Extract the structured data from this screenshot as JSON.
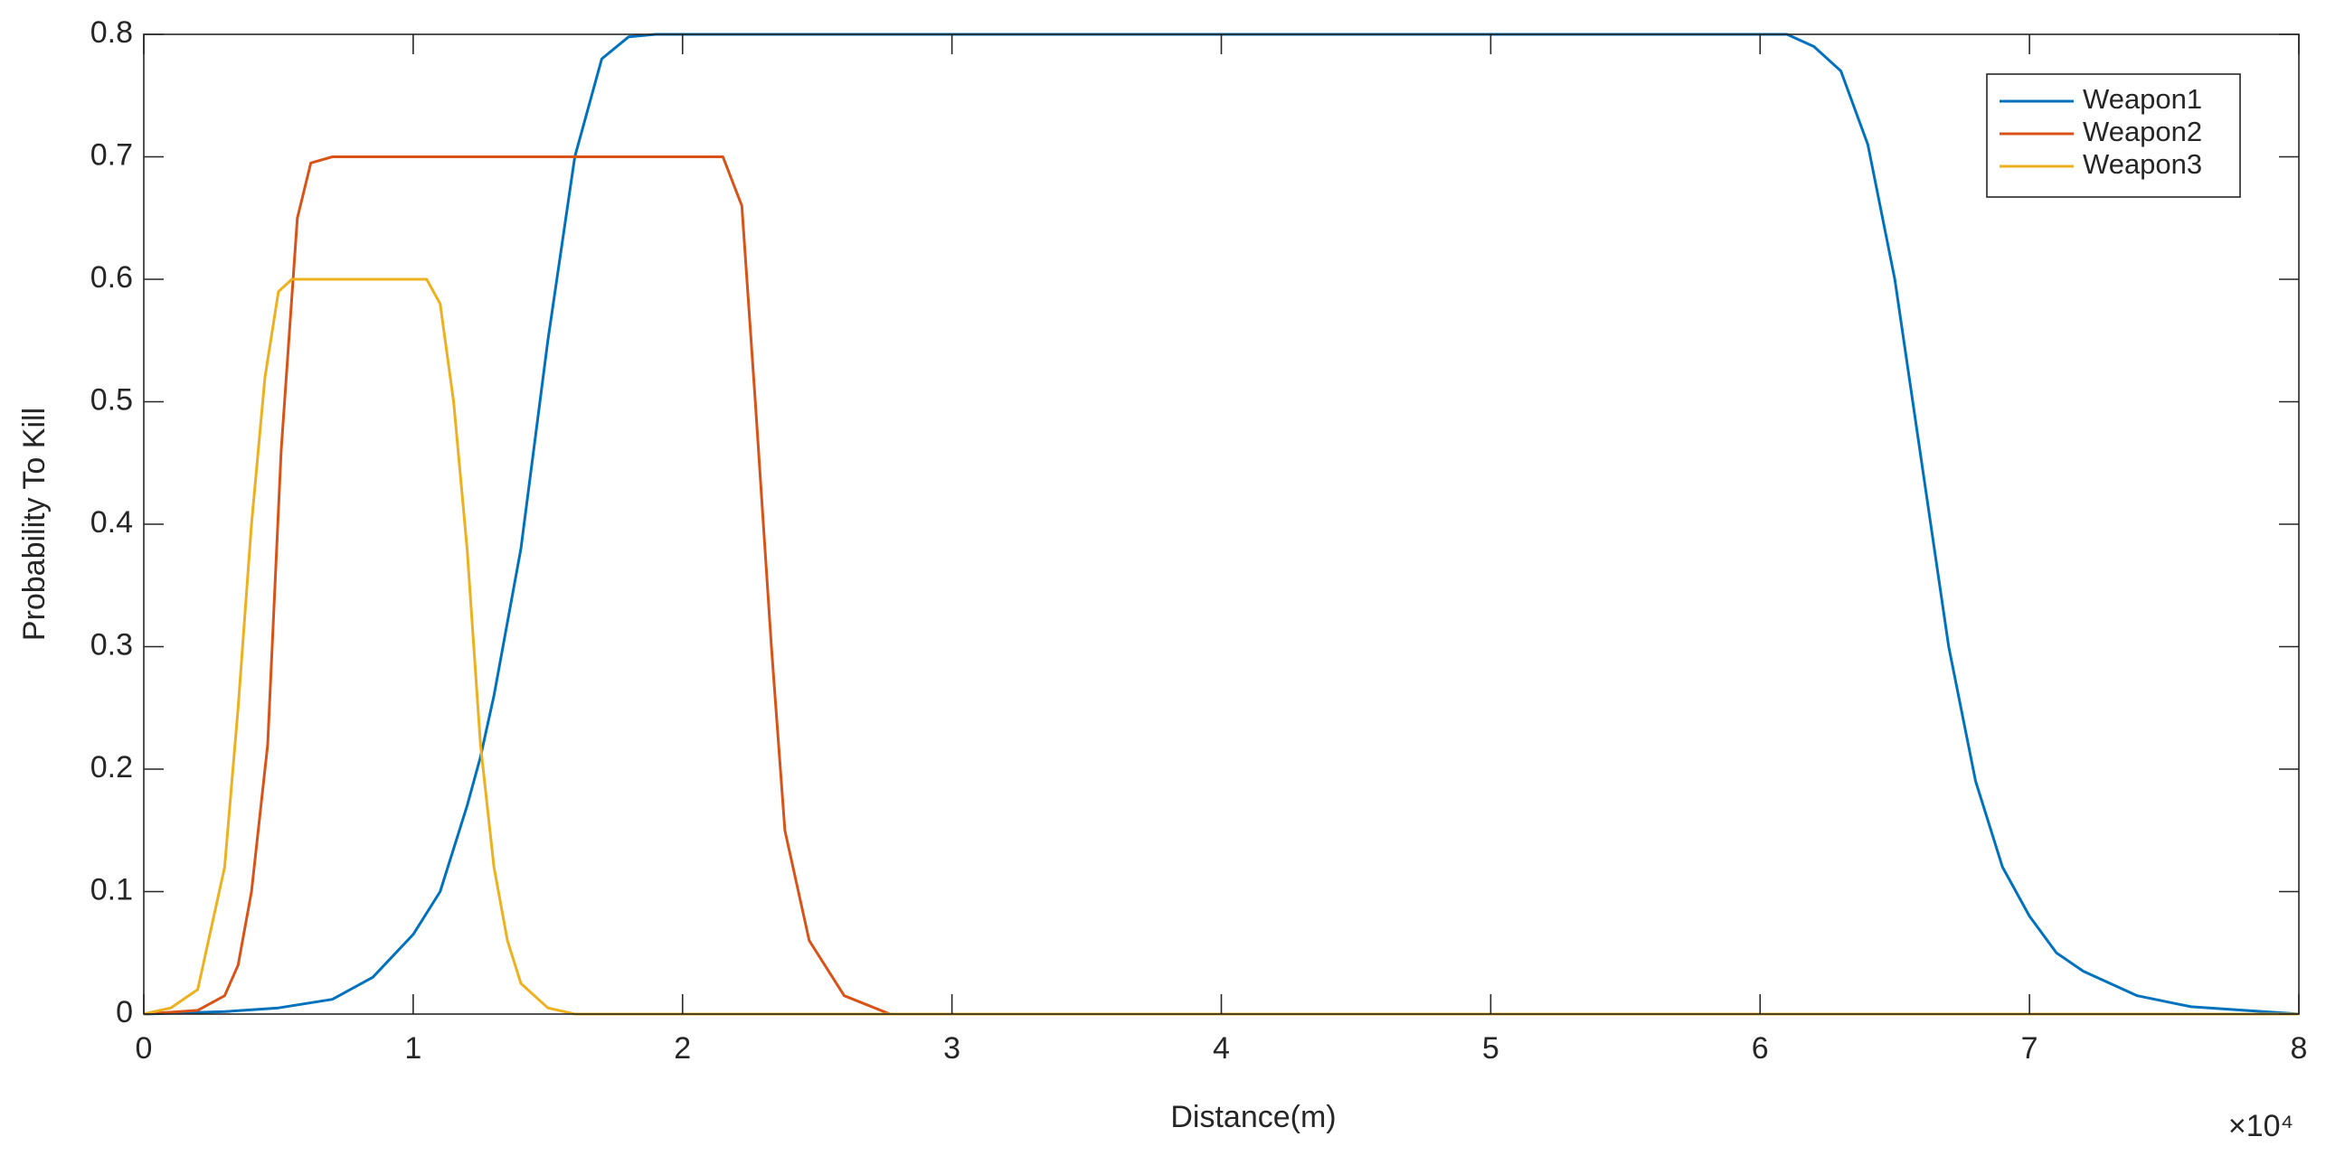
{
  "chart_data": {
    "type": "line",
    "xlabel": "Distance(m)",
    "ylabel": "Probability To Kill",
    "x_multiplier": "×10⁴",
    "xlim": [
      0,
      8
    ],
    "xticks": [
      0,
      1,
      2,
      3,
      4,
      5,
      6,
      7,
      8
    ],
    "ylim": [
      0,
      0.8
    ],
    "yticks": [
      0,
      0.1,
      0.2,
      0.3,
      0.4,
      0.5,
      0.6,
      0.7,
      0.8
    ],
    "grid": false,
    "legend": "upper right",
    "series": [
      {
        "name": "Weapon1",
        "color": "#0072BD",
        "x": [
          0,
          0.3,
          0.5,
          0.7,
          0.85,
          1.0,
          1.1,
          1.2,
          1.25,
          1.3,
          1.4,
          1.5,
          1.6,
          1.7,
          1.8,
          1.9,
          2.0,
          3,
          4,
          5,
          6.0,
          6.1,
          6.2,
          6.3,
          6.4,
          6.5,
          6.6,
          6.7,
          6.8,
          6.9,
          7.0,
          7.1,
          7.2,
          7.4,
          7.6,
          8
        ],
        "values": [
          0,
          0.002,
          0.005,
          0.012,
          0.03,
          0.065,
          0.1,
          0.17,
          0.21,
          0.26,
          0.38,
          0.55,
          0.7,
          0.78,
          0.798,
          0.8,
          0.8,
          0.8,
          0.8,
          0.8,
          0.8,
          0.8,
          0.79,
          0.77,
          0.71,
          0.6,
          0.45,
          0.3,
          0.19,
          0.12,
          0.08,
          0.05,
          0.035,
          0.015,
          0.006,
          0
        ]
      },
      {
        "name": "Weapon2",
        "color": "#D95319",
        "x": [
          0,
          0.2,
          0.3,
          0.35,
          0.4,
          0.46,
          0.51,
          0.57,
          0.62,
          0.7,
          1.0,
          2.0,
          2.15,
          2.22,
          2.27,
          2.33,
          2.38,
          2.47,
          2.6,
          2.77,
          8
        ],
        "values": [
          0,
          0.003,
          0.015,
          0.04,
          0.1,
          0.22,
          0.46,
          0.65,
          0.695,
          0.7,
          0.7,
          0.7,
          0.7,
          0.66,
          0.5,
          0.3,
          0.15,
          0.06,
          0.015,
          0,
          0
        ]
      },
      {
        "name": "Weapon3",
        "color": "#EDB120",
        "x": [
          0,
          0.1,
          0.2,
          0.3,
          0.35,
          0.4,
          0.45,
          0.5,
          0.55,
          1.0,
          1.05,
          1.1,
          1.15,
          1.2,
          1.25,
          1.3,
          1.35,
          1.4,
          1.5,
          1.6,
          8
        ],
        "values": [
          0,
          0.005,
          0.02,
          0.12,
          0.25,
          0.4,
          0.52,
          0.59,
          0.6,
          0.6,
          0.6,
          0.58,
          0.5,
          0.38,
          0.22,
          0.12,
          0.06,
          0.025,
          0.005,
          0,
          0
        ]
      }
    ]
  }
}
